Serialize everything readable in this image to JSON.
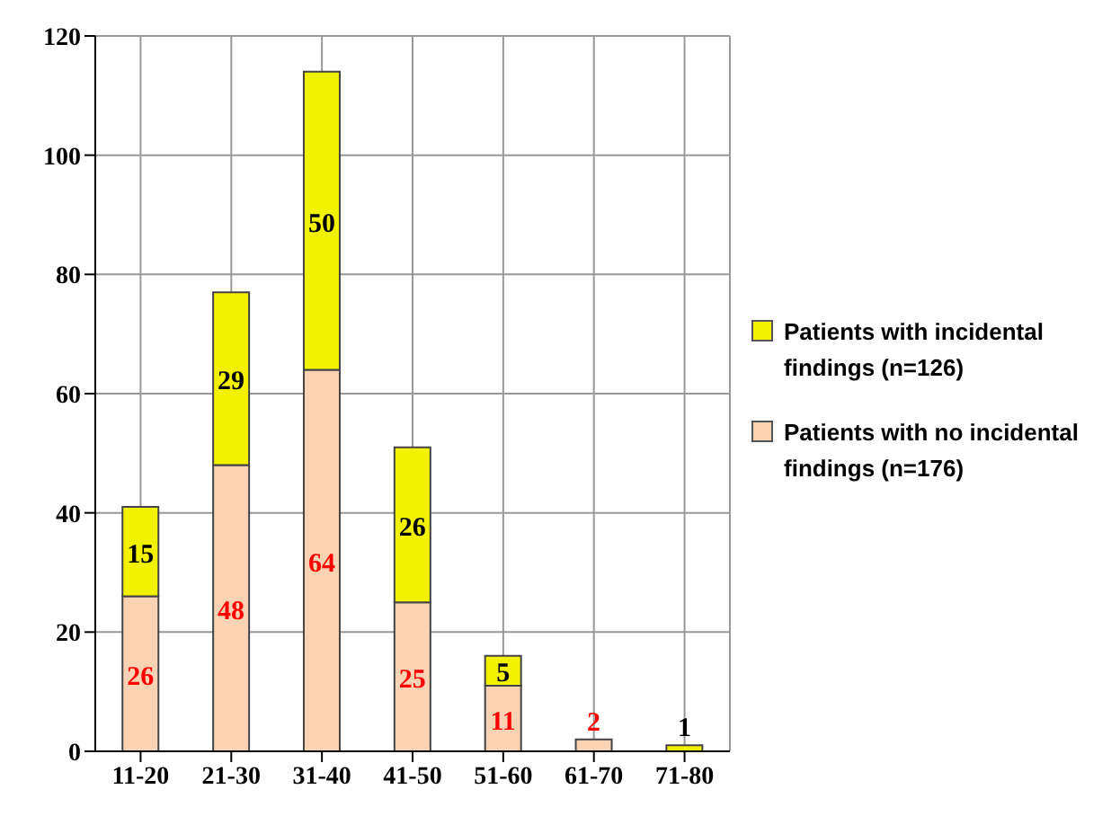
{
  "chart_data": {
    "type": "bar",
    "stacked": true,
    "categories": [
      "11-20",
      "21-30",
      "31-40",
      "41-50",
      "51-60",
      "61-70",
      "71-80"
    ],
    "series": [
      {
        "name": "Patients with no incidental findings (n=176)",
        "color": "#fad3b4",
        "values": [
          26,
          48,
          64,
          25,
          11,
          2,
          0
        ],
        "value_labels": [
          "26",
          "48",
          "64",
          "25",
          "11",
          "2",
          null
        ]
      },
      {
        "name": "Patients with incidental findings (n=126)",
        "color": "#f2f200",
        "values": [
          15,
          29,
          50,
          26,
          5,
          0,
          1
        ],
        "value_labels": [
          "15",
          "29",
          "50",
          "26",
          "5",
          null,
          "1"
        ]
      }
    ],
    "ylim": [
      0,
      120
    ],
    "yticks": [
      0,
      20,
      40,
      60,
      80,
      100,
      120
    ],
    "grid": true,
    "legend": "right"
  }
}
